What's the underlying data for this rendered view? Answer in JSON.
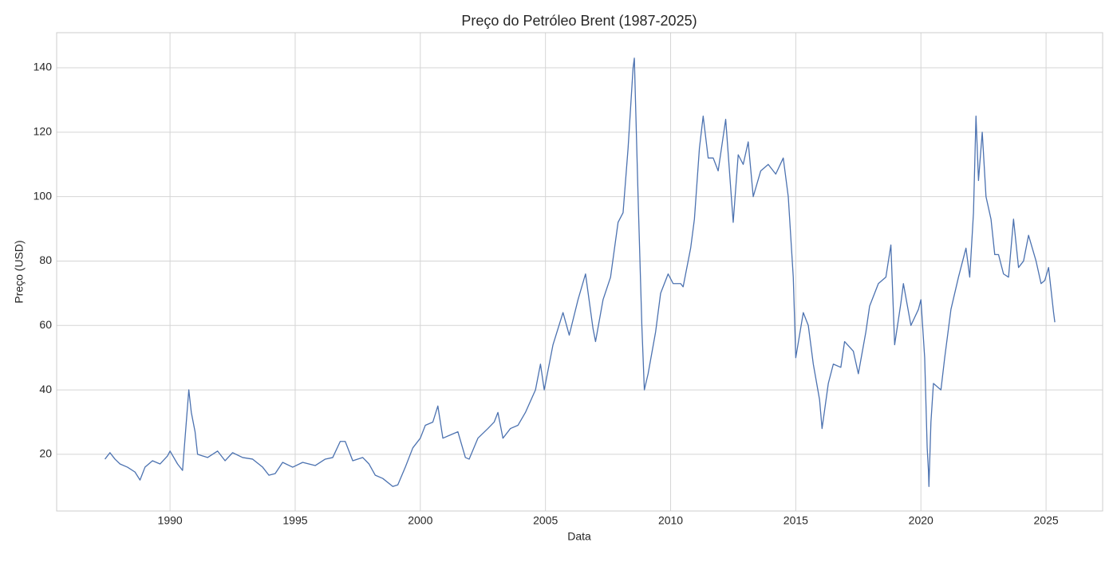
{
  "chart_data": {
    "type": "line",
    "title": "Preço do Petróleo Brent (1987-2025)",
    "x_label": "Data",
    "y_label": "Preço (USD)",
    "x": [
      1987.4,
      1987.6,
      1987.8,
      1988.0,
      1988.3,
      1988.6,
      1988.8,
      1989.0,
      1989.3,
      1989.6,
      1989.9,
      1990.0,
      1990.3,
      1990.5,
      1990.6,
      1990.75,
      1990.85,
      1991.0,
      1991.1,
      1991.5,
      1991.9,
      1992.2,
      1992.5,
      1992.9,
      1993.3,
      1993.7,
      1993.95,
      1994.2,
      1994.5,
      1994.9,
      1995.3,
      1995.8,
      1996.2,
      1996.5,
      1996.8,
      1997.0,
      1997.3,
      1997.7,
      1997.95,
      1998.2,
      1998.5,
      1998.9,
      1999.1,
      1999.4,
      1999.7,
      2000.0,
      2000.2,
      2000.5,
      2000.7,
      2000.9,
      2001.2,
      2001.5,
      2001.8,
      2001.95,
      2002.3,
      2002.7,
      2002.95,
      2003.1,
      2003.3,
      2003.6,
      2003.9,
      2004.2,
      2004.6,
      2004.8,
      2004.95,
      2005.3,
      2005.7,
      2005.95,
      2006.3,
      2006.6,
      2006.9,
      2007.0,
      2007.3,
      2007.6,
      2007.9,
      2008.1,
      2008.3,
      2008.5,
      2008.55,
      2008.7,
      2008.85,
      2008.95,
      2009.1,
      2009.4,
      2009.6,
      2009.9,
      2010.1,
      2010.4,
      2010.5,
      2010.8,
      2010.95,
      2011.15,
      2011.3,
      2011.5,
      2011.7,
      2011.9,
      2012.2,
      2012.5,
      2012.7,
      2012.9,
      2013.1,
      2013.3,
      2013.6,
      2013.9,
      2014.2,
      2014.5,
      2014.7,
      2014.9,
      2015.0,
      2015.3,
      2015.5,
      2015.7,
      2015.95,
      2016.05,
      2016.3,
      2016.5,
      2016.8,
      2016.95,
      2017.3,
      2017.5,
      2017.8,
      2017.95,
      2018.3,
      2018.6,
      2018.8,
      2018.95,
      2019.2,
      2019.3,
      2019.6,
      2019.9,
      2020.0,
      2020.15,
      2020.25,
      2020.3,
      2020.32,
      2020.4,
      2020.5,
      2020.8,
      2020.95,
      2021.2,
      2021.5,
      2021.8,
      2021.95,
      2022.1,
      2022.2,
      2022.3,
      2022.45,
      2022.6,
      2022.8,
      2022.95,
      2023.1,
      2023.3,
      2023.5,
      2023.7,
      2023.9,
      2024.1,
      2024.3,
      2024.6,
      2024.8,
      2024.95,
      2025.1,
      2025.3,
      2025.35
    ],
    "series": [
      {
        "name": "Brent",
        "color": "#4c72b0",
        "values": [
          18.5,
          20.5,
          18.5,
          17,
          16,
          14.5,
          12,
          16,
          18,
          17,
          19.5,
          21,
          17,
          15,
          25,
          40,
          33,
          27,
          20,
          19,
          21,
          18,
          20.5,
          19,
          18.5,
          16,
          13.5,
          14,
          17.5,
          16,
          17.5,
          16.5,
          18.5,
          19,
          24,
          24,
          18,
          19,
          17,
          13.5,
          12.5,
          10,
          10.5,
          16,
          22,
          25,
          29,
          30,
          35,
          25,
          26,
          27,
          19,
          18.5,
          25,
          28,
          30,
          33,
          25,
          28,
          29,
          33,
          40,
          48,
          40,
          54,
          64,
          57,
          68,
          76,
          59,
          55,
          68,
          75,
          92,
          95,
          115,
          140,
          143,
          100,
          60,
          40,
          45,
          58,
          70,
          76,
          73,
          73,
          72,
          84,
          93,
          115,
          125,
          112,
          112,
          108,
          124,
          92,
          113,
          110,
          117,
          100,
          108,
          110,
          107,
          112,
          100,
          75,
          50,
          64,
          60,
          48,
          37,
          28,
          42,
          48,
          47,
          55,
          52,
          45,
          58,
          66,
          73,
          75,
          85,
          54,
          67,
          73,
          60,
          65,
          68,
          50,
          22,
          15,
          10,
          30,
          42,
          40,
          50,
          65,
          75,
          84,
          75,
          95,
          125,
          105,
          120,
          100,
          93,
          82,
          82,
          76,
          75,
          93,
          78,
          80,
          88,
          80,
          73,
          74,
          78,
          64,
          61
        ]
      }
    ],
    "xlim": [
      1985.47,
      2027.26
    ],
    "xticks": [
      1990,
      1995,
      2000,
      2005,
      2010,
      2015,
      2020,
      2025
    ],
    "ylim": [
      2.4,
      150.9
    ],
    "yticks": [
      20,
      40,
      60,
      80,
      100,
      120,
      140
    ],
    "grid": true
  }
}
